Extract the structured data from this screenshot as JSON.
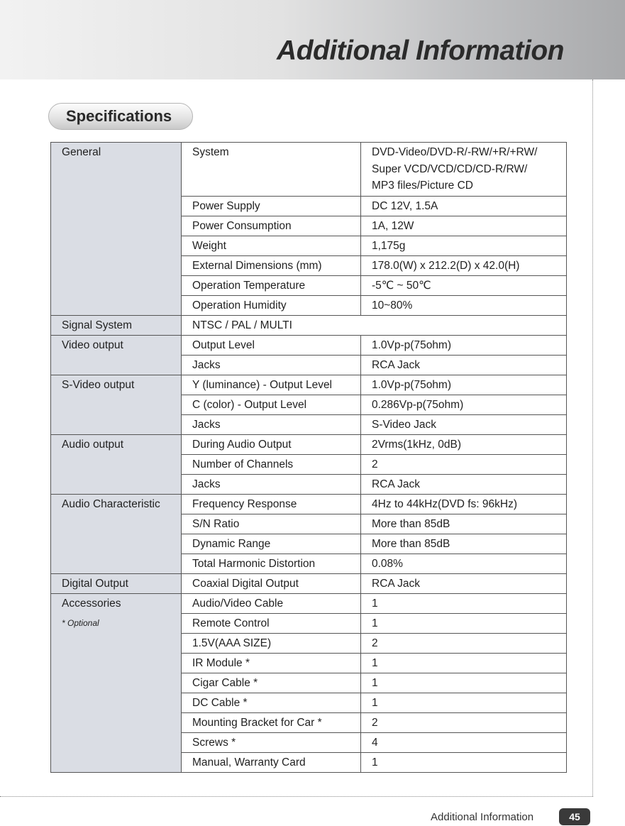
{
  "header": {
    "title": "Additional Information"
  },
  "section": "Specifications",
  "table": {
    "groups": [
      {
        "name": "General",
        "rows": [
          {
            "label": "System",
            "value": [
              "DVD-Video/DVD-R/-RW/+R/+RW/",
              "Super VCD/VCD/CD/CD-R/RW/",
              "MP3 files/Picture CD"
            ]
          },
          {
            "label": "Power Supply",
            "value": "DC 12V, 1.5A"
          },
          {
            "label": "Power Consumption",
            "value": "1A, 12W"
          },
          {
            "label": "Weight",
            "value": "1,175g"
          },
          {
            "label": "External Dimensions  (mm)",
            "value": "178.0(W) x 212.2(D) x 42.0(H)"
          },
          {
            "label": "Operation Temperature",
            "value": "-5℃ ~ 50℃"
          },
          {
            "label": "Operation Humidity",
            "value": "10~80%"
          }
        ]
      },
      {
        "name": "Signal System",
        "value": "NTSC / PAL / MULTI"
      },
      {
        "name": "Video output",
        "rows": [
          {
            "label": "Output Level",
            "value": "1.0Vp-p(75ohm)"
          },
          {
            "label": "Jacks",
            "value": "RCA Jack"
          }
        ]
      },
      {
        "name": "S-Video output",
        "rows": [
          {
            "label": "Y (luminance) - Output Level",
            "value": "1.0Vp-p(75ohm)"
          },
          {
            "label": "C (color) - Output Level",
            "value": "0.286Vp-p(75ohm)"
          },
          {
            "label": "Jacks",
            "value": "S-Video Jack"
          }
        ]
      },
      {
        "name": "Audio output",
        "rows": [
          {
            "label": "During Audio Output",
            "value": "2Vrms(1kHz, 0dB)"
          },
          {
            "label": "Number of Channels",
            "value": "2"
          },
          {
            "label": "Jacks",
            "value": "RCA Jack"
          }
        ]
      },
      {
        "name": "Audio Characteristic",
        "rows": [
          {
            "label": "Frequency Response",
            "value": "4Hz to 44kHz(DVD fs: 96kHz)"
          },
          {
            "label": "S/N Ratio",
            "value": "More than 85dB"
          },
          {
            "label": "Dynamic Range",
            "value": "More than 85dB"
          },
          {
            "label": "Total Harmonic Distortion",
            "value": "0.08%"
          }
        ]
      },
      {
        "name": "Digital Output",
        "rows": [
          {
            "label": "Coaxial Digital Output",
            "value": "RCA Jack"
          }
        ]
      },
      {
        "name": "Accessories",
        "note": "* Optional",
        "rows": [
          {
            "label": "Audio/Video Cable",
            "value": "1"
          },
          {
            "label": "Remote Control",
            "value": "1"
          },
          {
            "label": "1.5V(AAA SIZE)",
            "value": "2"
          },
          {
            "label": "IR Module *",
            "value": "1"
          },
          {
            "label": "Cigar Cable *",
            "value": "1"
          },
          {
            "label": "DC Cable *",
            "value": "1"
          },
          {
            "label": "Mounting Bracket for Car *",
            "value": "2"
          },
          {
            "label": "Screws *",
            "value": "4"
          },
          {
            "label": "Manual, Warranty Card",
            "value": "1"
          }
        ]
      }
    ]
  },
  "footer": {
    "label": "Additional Information",
    "page": "45"
  }
}
